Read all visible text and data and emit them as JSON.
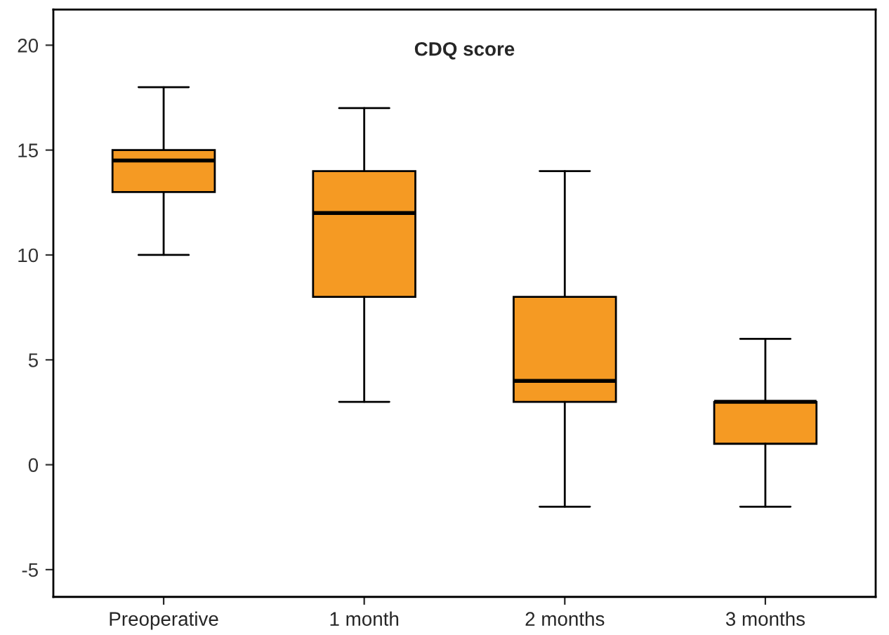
{
  "chart_data": {
    "type": "box",
    "title": "CDQ score",
    "categories": [
      "Preoperative",
      "1 month",
      "2 months",
      "3 months"
    ],
    "boxes": [
      {
        "low": 10,
        "q1": 13,
        "median": 14.5,
        "q3": 15,
        "high": 18
      },
      {
        "low": 3,
        "q1": 8,
        "median": 12,
        "q3": 14,
        "high": 17
      },
      {
        "low": -2,
        "q1": 3,
        "median": 4,
        "q3": 8,
        "high": 14
      },
      {
        "low": -2,
        "q1": 1,
        "median": 3,
        "q3": 3,
        "high": 6
      }
    ],
    "color": "#f59a23",
    "ylim": [
      -6.3,
      21.7
    ],
    "yticks": [
      -5,
      0,
      5,
      10,
      15,
      20
    ],
    "grid": false
  }
}
